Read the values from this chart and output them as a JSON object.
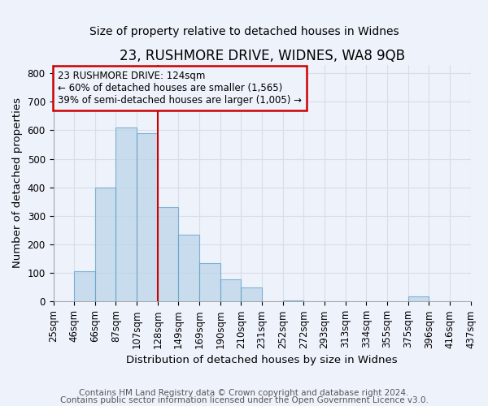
{
  "title": "23, RUSHMORE DRIVE, WIDNES, WA8 9QB",
  "subtitle": "Size of property relative to detached houses in Widnes",
  "xlabel": "Distribution of detached houses by size in Widnes",
  "ylabel": "Number of detached properties",
  "footnote1": "Contains HM Land Registry data © Crown copyright and database right 2024.",
  "footnote2": "Contains public sector information licensed under the Open Government Licence v3.0.",
  "bin_labels": [
    "25sqm",
    "46sqm",
    "66sqm",
    "87sqm",
    "107sqm",
    "128sqm",
    "149sqm",
    "169sqm",
    "190sqm",
    "210sqm",
    "231sqm",
    "252sqm",
    "272sqm",
    "293sqm",
    "313sqm",
    "334sqm",
    "355sqm",
    "375sqm",
    "396sqm",
    "416sqm",
    "437sqm"
  ],
  "bar_heights": [
    0,
    105,
    400,
    610,
    590,
    330,
    235,
    135,
    78,
    50,
    0,
    5,
    0,
    0,
    0,
    0,
    0,
    18,
    0,
    0
  ],
  "bar_color": "#b8d4e8",
  "bar_edge_color": "#5a9ec9",
  "bar_alpha": 0.7,
  "vline_x": 4.5,
  "vline_color": "#cc0000",
  "annotation_text": "23 RUSHMORE DRIVE: 124sqm\n← 60% of detached houses are smaller (1,565)\n39% of semi-detached houses are larger (1,005) →",
  "annotation_box_color": "#cc0000",
  "annotation_text_color": "#000000",
  "ylim": [
    0,
    830
  ],
  "yticks": [
    0,
    100,
    200,
    300,
    400,
    500,
    600,
    700,
    800
  ],
  "background_color": "#eef2fb",
  "grid_color": "#d8dde8",
  "title_fontsize": 12,
  "subtitle_fontsize": 10,
  "axis_label_fontsize": 9.5,
  "tick_fontsize": 8.5,
  "annotation_fontsize": 8.5,
  "footnote_fontsize": 7.5
}
